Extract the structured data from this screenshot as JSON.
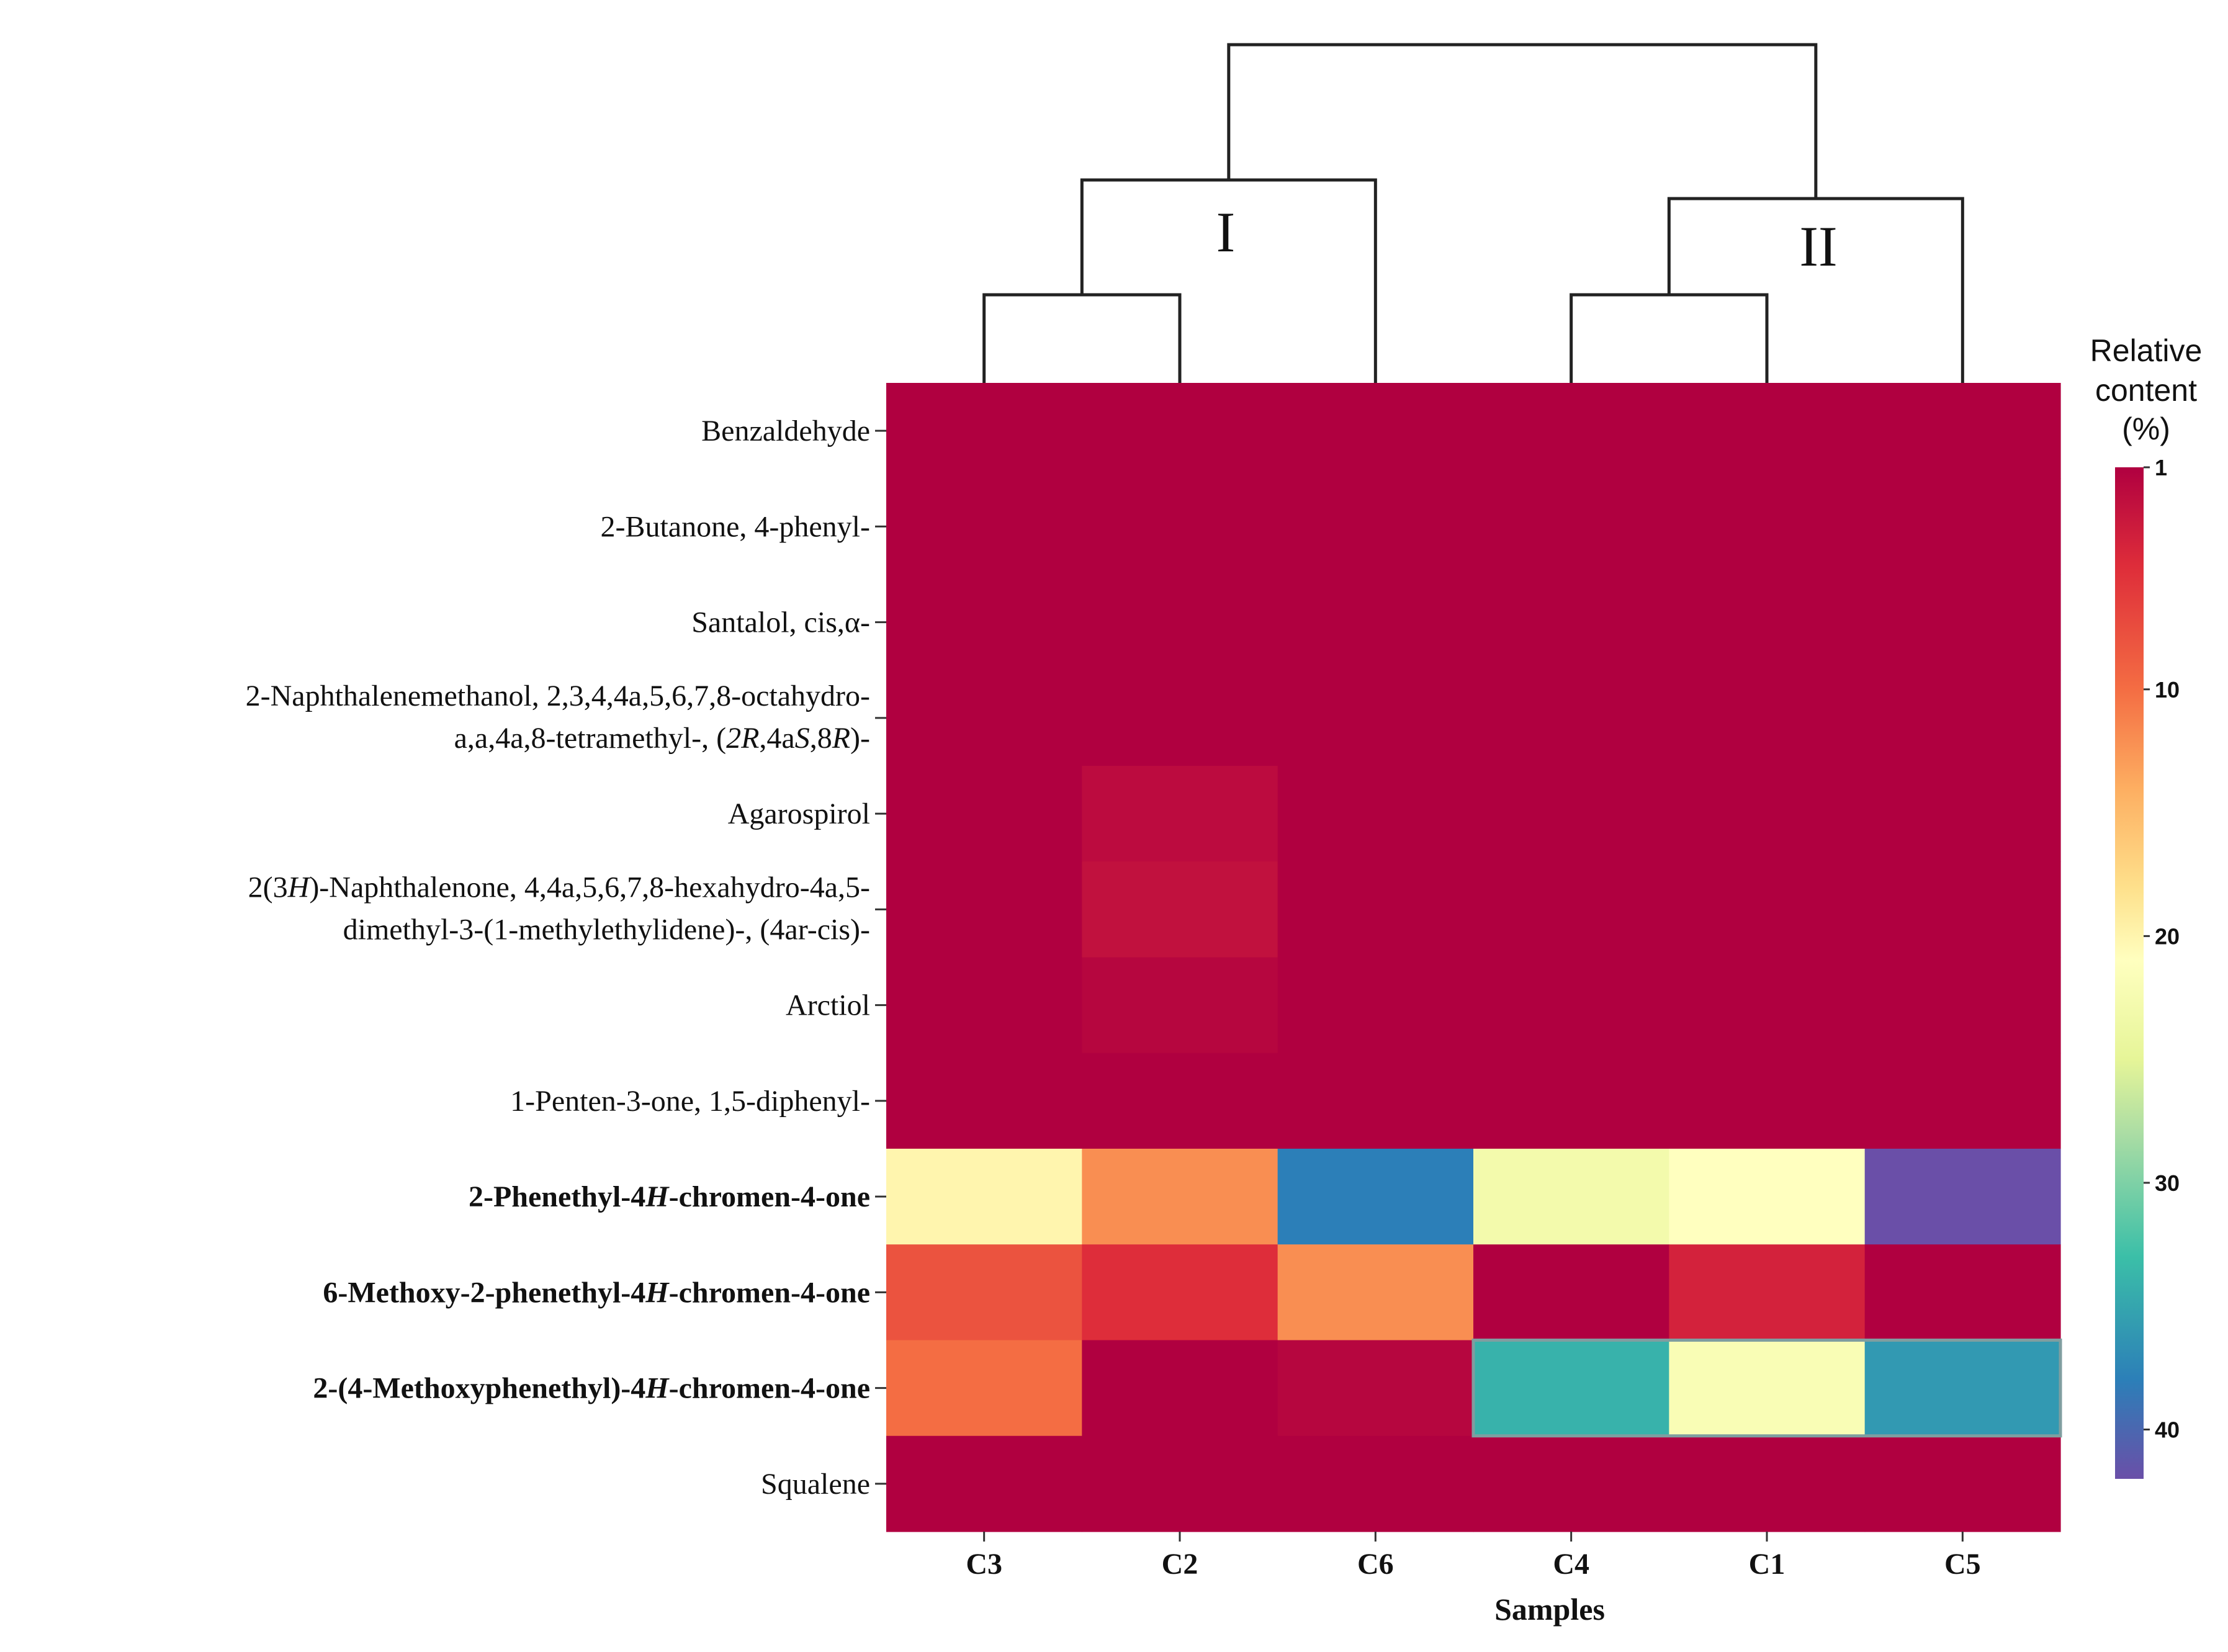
{
  "chart_data": {
    "type": "heatmap",
    "xlabel": "Samples",
    "columns": [
      "C3",
      "C2",
      "C6",
      "C4",
      "C1",
      "C5"
    ],
    "rows": [
      {
        "parts": [
          {
            "t": "Benzaldehyde"
          }
        ],
        "bold": false
      },
      {
        "parts": [
          {
            "t": "2-Butanone, 4-phenyl-"
          }
        ],
        "bold": false
      },
      {
        "parts": [
          {
            "t": "Santalol, cis,α-"
          }
        ],
        "bold": false
      },
      {
        "parts": [
          {
            "t": "2-Naphthalenemethanol, 2,3,4,4a,5,6,7,8-octahydro-"
          }
        ],
        "line2": [
          {
            "t": "a,a,4a,8-tetramethyl-, ("
          },
          {
            "t": "2R",
            "i": true
          },
          {
            "t": ",4a"
          },
          {
            "t": "S",
            "i": true
          },
          {
            "t": ",8"
          },
          {
            "t": "R",
            "i": true
          },
          {
            "t": ")-"
          }
        ],
        "bold": false
      },
      {
        "parts": [
          {
            "t": "Agarospirol"
          }
        ],
        "bold": false
      },
      {
        "parts": [
          {
            "t": "2(3"
          },
          {
            "t": "H",
            "i": true
          },
          {
            "t": ")-Naphthalenone, 4,4a,5,6,7,8-hexahydro-4a,5-"
          }
        ],
        "line2": [
          {
            "t": "dimethyl-3-(1-methylethylidene)-, (4ar-cis)-"
          }
        ],
        "bold": false
      },
      {
        "parts": [
          {
            "t": "Arctiol"
          }
        ],
        "bold": false
      },
      {
        "parts": [
          {
            "t": "1-Penten-3-one, 1,5-diphenyl-"
          }
        ],
        "bold": false
      },
      {
        "parts": [
          {
            "t": "2-Phenethyl-4"
          },
          {
            "t": "H",
            "i": true
          },
          {
            "t": "-chromen-4-one"
          }
        ],
        "bold": true
      },
      {
        "parts": [
          {
            "t": "6-Methoxy-2-phenethyl-4"
          },
          {
            "t": "H",
            "i": true
          },
          {
            "t": "-chromen-4-one"
          }
        ],
        "bold": true
      },
      {
        "parts": [
          {
            "t": "2-(4-Methoxyphenethyl)-4"
          },
          {
            "t": "H",
            "i": true
          },
          {
            "t": "-chromen-4-one"
          }
        ],
        "bold": true
      },
      {
        "parts": [
          {
            "t": "Squalene"
          }
        ],
        "bold": false
      }
    ],
    "values": [
      [
        1,
        1,
        1,
        1,
        1,
        1
      ],
      [
        1,
        1,
        1,
        1,
        1,
        1
      ],
      [
        1,
        1,
        1,
        1,
        1,
        1
      ],
      [
        1,
        1,
        1,
        1,
        1,
        1
      ],
      [
        1,
        2,
        1,
        1,
        1,
        1
      ],
      [
        1,
        2.5,
        1,
        1,
        1,
        1
      ],
      [
        1,
        1.5,
        1,
        1,
        1,
        1
      ],
      [
        1,
        1,
        1,
        1,
        1,
        1
      ],
      [
        20,
        12,
        38,
        23,
        21,
        42
      ],
      [
        8,
        5,
        12,
        1,
        4,
        1
      ],
      [
        10,
        1,
        1.5,
        34,
        22,
        36
      ],
      [
        1,
        1,
        1,
        1,
        1,
        1
      ]
    ],
    "colorbar": {
      "title_lines": [
        "Relative",
        "content",
        "(%)"
      ],
      "range": [
        1,
        42
      ],
      "ticks": [
        1,
        10,
        20,
        30,
        40
      ],
      "stops": [
        {
          "v": 1,
          "c": "#b00040"
        },
        {
          "v": 5,
          "c": "#de2d3a"
        },
        {
          "v": 10,
          "c": "#f46d43"
        },
        {
          "v": 14,
          "c": "#fdae61"
        },
        {
          "v": 18,
          "c": "#fee08b"
        },
        {
          "v": 21,
          "c": "#ffffbf"
        },
        {
          "v": 25,
          "c": "#e6f598"
        },
        {
          "v": 28,
          "c": "#abdda4"
        },
        {
          "v": 33,
          "c": "#3bbfa8"
        },
        {
          "v": 38,
          "c": "#2c7fb8"
        },
        {
          "v": 42,
          "c": "#6a4fa8"
        }
      ]
    },
    "clusters": [
      "I",
      "II"
    ]
  }
}
